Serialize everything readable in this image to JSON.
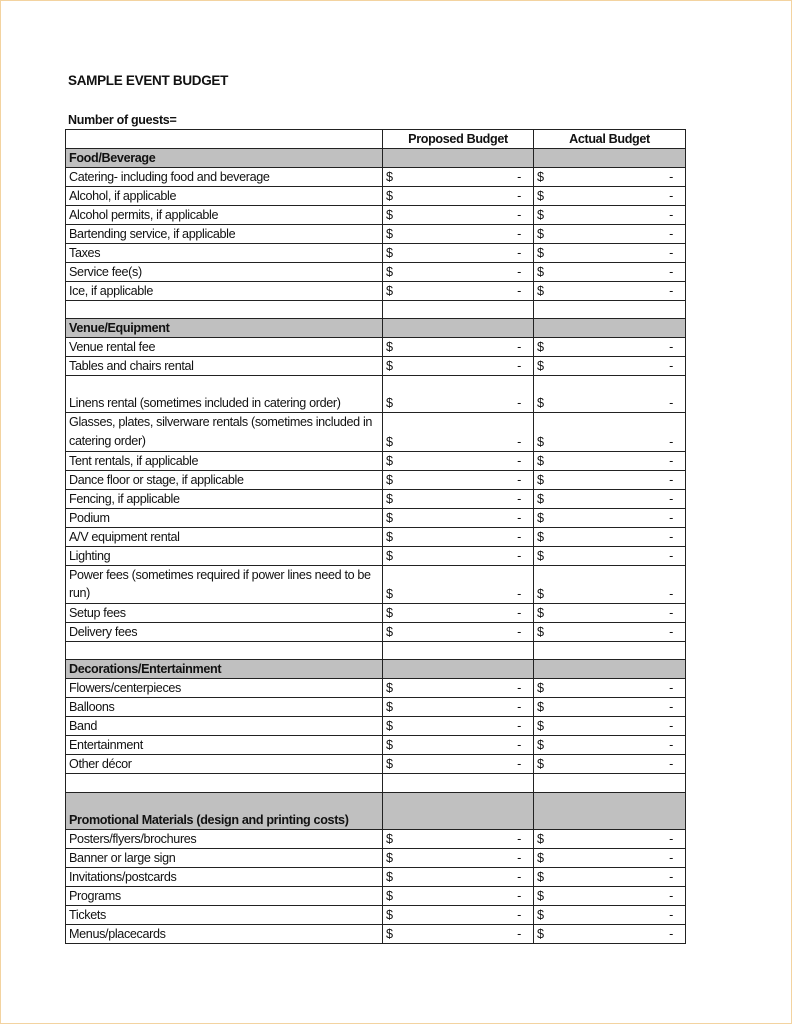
{
  "title": "SAMPLE EVENT BUDGET",
  "guests_label": "Number of guests=",
  "columns": [
    "",
    "Proposed Budget",
    "Actual Budget"
  ],
  "currency_symbol": "$",
  "empty_value": "-",
  "section_color": "#c0c0c0",
  "rows": [
    {
      "type": "section",
      "label": "Food/Beverage"
    },
    {
      "type": "item",
      "label": "Catering- including food and beverage"
    },
    {
      "type": "item",
      "label": "Alcohol, if applicable"
    },
    {
      "type": "item",
      "label": "Alcohol permits, if applicable"
    },
    {
      "type": "item",
      "label": "Bartending service, if applicable"
    },
    {
      "type": "item",
      "label": "Taxes"
    },
    {
      "type": "item",
      "label": "Service fee(s)"
    },
    {
      "type": "item",
      "label": "Ice, if applicable"
    },
    {
      "type": "blank"
    },
    {
      "type": "section",
      "label": "Venue/Equipment"
    },
    {
      "type": "item",
      "label": "Venue rental fee"
    },
    {
      "type": "item",
      "label": "Tables and chairs rental"
    },
    {
      "type": "item",
      "label": "Linens rental (sometimes included in catering order)",
      "tall": true
    },
    {
      "type": "item",
      "label": "Glasses, plates, silverware rentals (sometimes included in catering order)",
      "tall": true
    },
    {
      "type": "item",
      "label": "Tent rentals, if applicable"
    },
    {
      "type": "item",
      "label": "Dance floor or stage, if applicable"
    },
    {
      "type": "item",
      "label": "Fencing, if applicable"
    },
    {
      "type": "item",
      "label": "Podium"
    },
    {
      "type": "item",
      "label": "A/V equipment rental"
    },
    {
      "type": "item",
      "label": "Lighting"
    },
    {
      "type": "item",
      "label": "Power fees (sometimes required if power lines need to be run)",
      "tall": true
    },
    {
      "type": "item",
      "label": "Setup fees"
    },
    {
      "type": "item",
      "label": "Delivery fees"
    },
    {
      "type": "blank"
    },
    {
      "type": "section",
      "label": "Decorations/Entertainment"
    },
    {
      "type": "item",
      "label": "Flowers/centerpieces"
    },
    {
      "type": "item",
      "label": "Balloons"
    },
    {
      "type": "item",
      "label": "Band"
    },
    {
      "type": "item",
      "label": "Entertainment"
    },
    {
      "type": "item",
      "label": "Other décor"
    },
    {
      "type": "blank"
    },
    {
      "type": "section",
      "label": "Promotional Materials (design and printing costs)",
      "tall": true
    },
    {
      "type": "item",
      "label": "Posters/flyers/brochures"
    },
    {
      "type": "item",
      "label": "Banner or large sign"
    },
    {
      "type": "item",
      "label": "Invitations/postcards"
    },
    {
      "type": "item",
      "label": "Programs"
    },
    {
      "type": "item",
      "label": "Tickets"
    },
    {
      "type": "item",
      "label": "Menus/placecards"
    }
  ]
}
